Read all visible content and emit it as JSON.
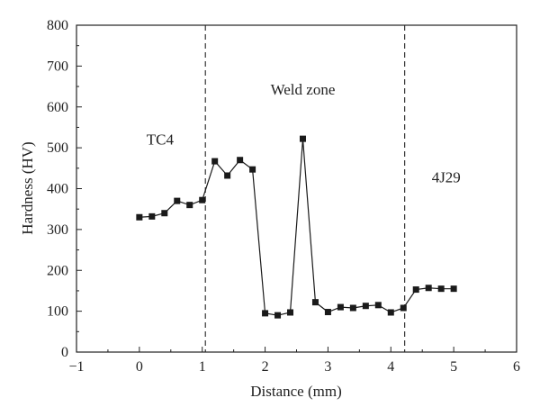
{
  "chart_data": {
    "type": "line",
    "title": "",
    "xlabel": "Distance (mm)",
    "ylabel": "Hardness (HV)",
    "xlim": [
      -1,
      6
    ],
    "ylim": [
      0,
      800
    ],
    "xticks": [
      "−1",
      "0",
      "1",
      "2",
      "3",
      "4",
      "5",
      "6"
    ],
    "yticks": [
      "0",
      "100",
      "200",
      "300",
      "400",
      "500",
      "600",
      "700",
      "800"
    ],
    "grid": false,
    "legend": "none",
    "marker": "square",
    "color": "#1a1a1a",
    "series": [
      {
        "x": [
          0,
          0.2,
          0.4,
          0.6,
          0.8,
          1.0,
          1.2,
          1.4,
          1.6,
          1.8,
          2.0,
          2.2,
          2.4,
          2.6,
          2.8,
          3.0,
          3.2,
          3.4,
          3.6,
          3.8,
          4.0,
          4.2,
          4.4,
          4.6,
          4.8,
          5.0
        ],
        "y": [
          330,
          332,
          340,
          370,
          360,
          372,
          467,
          432,
          470,
          447,
          95,
          90,
          97,
          522,
          122,
          98,
          110,
          108,
          113,
          115,
          97,
          108,
          153,
          157,
          155,
          155
        ]
      }
    ],
    "boundaries": [
      1.05,
      4.22
    ],
    "annotations": [
      {
        "text": "TC4",
        "x": 0.33,
        "y": 508
      },
      {
        "text": "Weld zone",
        "x": 2.6,
        "y": 630
      },
      {
        "text": "4J29",
        "x": 4.88,
        "y": 415
      }
    ]
  }
}
